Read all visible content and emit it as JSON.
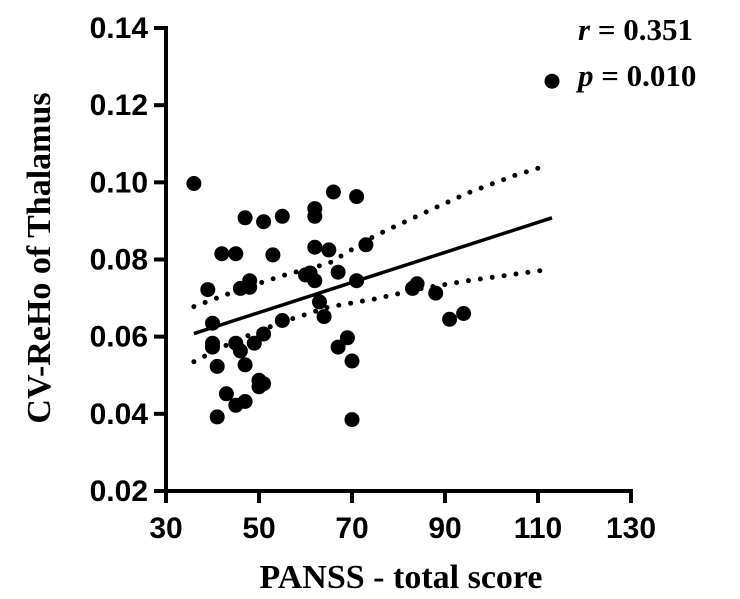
{
  "chart_data": {
    "type": "scatter",
    "xlabel": "PANSS - total score",
    "ylabel": "CV-ReHo of Thalamus",
    "xlim": [
      30,
      130
    ],
    "ylim": [
      0.02,
      0.14
    ],
    "xticks": [
      30,
      50,
      70,
      90,
      110,
      130
    ],
    "xtick_labels": [
      "30",
      "50",
      "70",
      "90",
      "110",
      "130"
    ],
    "yticks": [
      0.02,
      0.04,
      0.06,
      0.08,
      0.1,
      0.12,
      0.14
    ],
    "ytick_labels": [
      "0.02",
      "0.04",
      "0.06",
      "0.08",
      "0.10",
      "0.12",
      "0.14"
    ],
    "grid": false,
    "stats": {
      "r_var": "r",
      "r_text": " = 0.351",
      "p_var": "p",
      "p_text": " = 0.010"
    },
    "points": [
      {
        "x": 36,
        "y": 0.0997
      },
      {
        "x": 39,
        "y": 0.0722
      },
      {
        "x": 40,
        "y": 0.0635
      },
      {
        "x": 40,
        "y": 0.0583
      },
      {
        "x": 40,
        "y": 0.0573
      },
      {
        "x": 41,
        "y": 0.0523
      },
      {
        "x": 41,
        "y": 0.0392
      },
      {
        "x": 42,
        "y": 0.0815
      },
      {
        "x": 43,
        "y": 0.0452
      },
      {
        "x": 45,
        "y": 0.0815
      },
      {
        "x": 45,
        "y": 0.0583
      },
      {
        "x": 45,
        "y": 0.0422
      },
      {
        "x": 46,
        "y": 0.0725
      },
      {
        "x": 46,
        "y": 0.0563
      },
      {
        "x": 47,
        "y": 0.0908
      },
      {
        "x": 47,
        "y": 0.0527
      },
      {
        "x": 47,
        "y": 0.0432
      },
      {
        "x": 48,
        "y": 0.0745
      },
      {
        "x": 48,
        "y": 0.0728
      },
      {
        "x": 49,
        "y": 0.0583
      },
      {
        "x": 50,
        "y": 0.0487
      },
      {
        "x": 50,
        "y": 0.047
      },
      {
        "x": 51,
        "y": 0.0898
      },
      {
        "x": 51,
        "y": 0.0607
      },
      {
        "x": 51,
        "y": 0.0478
      },
      {
        "x": 53,
        "y": 0.0812
      },
      {
        "x": 55,
        "y": 0.0912
      },
      {
        "x": 55,
        "y": 0.0642
      },
      {
        "x": 60,
        "y": 0.076
      },
      {
        "x": 61,
        "y": 0.0765
      },
      {
        "x": 62,
        "y": 0.0932
      },
      {
        "x": 62,
        "y": 0.0912
      },
      {
        "x": 62,
        "y": 0.0832
      },
      {
        "x": 62,
        "y": 0.0745
      },
      {
        "x": 63,
        "y": 0.069
      },
      {
        "x": 64,
        "y": 0.0652
      },
      {
        "x": 65,
        "y": 0.0825
      },
      {
        "x": 66,
        "y": 0.0975
      },
      {
        "x": 67,
        "y": 0.0767
      },
      {
        "x": 67,
        "y": 0.0573
      },
      {
        "x": 69,
        "y": 0.0597
      },
      {
        "x": 70,
        "y": 0.0537
      },
      {
        "x": 70,
        "y": 0.0385
      },
      {
        "x": 71,
        "y": 0.0963
      },
      {
        "x": 71,
        "y": 0.0745
      },
      {
        "x": 73,
        "y": 0.0838
      },
      {
        "x": 83,
        "y": 0.0725
      },
      {
        "x": 84,
        "y": 0.0737
      },
      {
        "x": 88,
        "y": 0.0713
      },
      {
        "x": 91,
        "y": 0.0645
      },
      {
        "x": 94,
        "y": 0.066
      },
      {
        "x": 113,
        "y": 0.1262
      }
    ],
    "fit_line": {
      "x": [
        36,
        113
      ],
      "y": [
        0.0608,
        0.0908
      ]
    },
    "ci_upper": {
      "x": [
        36,
        45,
        55,
        65,
        75,
        85,
        95,
        105,
        111
      ],
      "y": [
        0.0678,
        0.0718,
        0.0758,
        0.079,
        0.0862,
        0.0918,
        0.0973,
        0.1018,
        0.104
      ]
    },
    "ci_lower": {
      "x": [
        36,
        45,
        55,
        65,
        75,
        85,
        95,
        105,
        111
      ],
      "y": [
        0.0535,
        0.059,
        0.0638,
        0.0677,
        0.0698,
        0.0725,
        0.0745,
        0.0762,
        0.0772
      ]
    }
  }
}
